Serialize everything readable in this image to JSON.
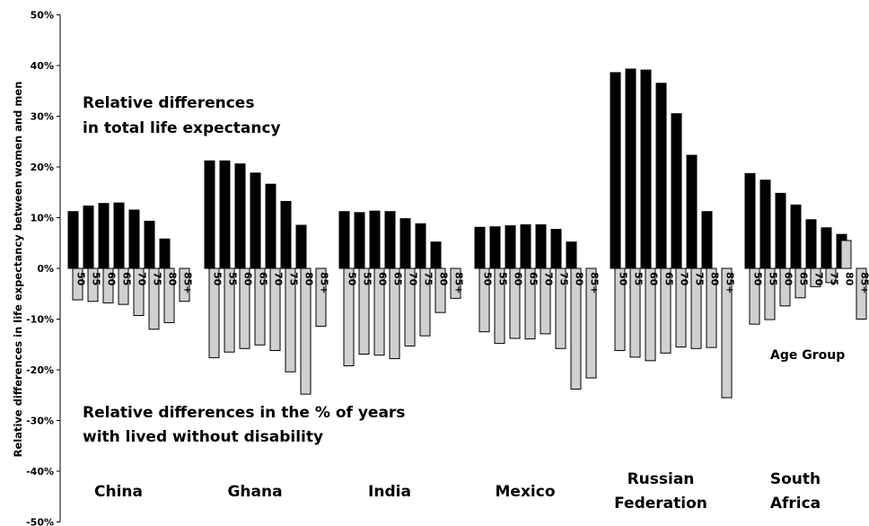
{
  "chart_data": {
    "type": "bar",
    "ylabel": "Relative differences in life expectancy between women and men",
    "ylim": [
      -0.5,
      0.5
    ],
    "yticks": [
      0.5,
      0.4,
      0.3,
      0.2,
      0.1,
      0,
      -0.1,
      -0.2,
      -0.3,
      -0.4,
      -0.5
    ],
    "ytick_labels": [
      "50%",
      "40%",
      "30%",
      "20%",
      "10%",
      "0%",
      "-10%",
      "-20%",
      "-30%",
      "-40%",
      "-50%"
    ],
    "age_group_label": "Age Group",
    "annotations": {
      "top": [
        "Relative differences",
        "in total life expectancy"
      ],
      "bottom": [
        "Relative differences in the % of years",
        "with lived without disability"
      ]
    },
    "colors": {
      "total": "#000000",
      "disability_free": "#d0d0d0",
      "outline": "#000000"
    },
    "series": [
      {
        "key": "total",
        "description": "total life expectancy"
      },
      {
        "key": "disability_free",
        "description": "% of years lived without disability"
      }
    ],
    "groups": [
      {
        "name_lines": [
          "China"
        ],
        "categories": [
          "50",
          "55",
          "60",
          "65",
          "70",
          "75",
          "80",
          "85+"
        ],
        "total": [
          0.112,
          0.123,
          0.128,
          0.129,
          0.115,
          0.093,
          0.058,
          null
        ],
        "disability_free": [
          -0.062,
          -0.065,
          -0.068,
          -0.071,
          -0.093,
          -0.12,
          -0.107,
          -0.065
        ]
      },
      {
        "name_lines": [
          "Ghana"
        ],
        "categories": [
          "50",
          "55",
          "60",
          "65",
          "70",
          "75",
          "80",
          "85+"
        ],
        "total": [
          0.212,
          0.212,
          0.206,
          0.188,
          0.166,
          0.132,
          0.085,
          null
        ],
        "disability_free": [
          -0.176,
          -0.165,
          -0.158,
          -0.151,
          -0.162,
          -0.204,
          -0.248,
          -0.114
        ]
      },
      {
        "name_lines": [
          "India"
        ],
        "categories": [
          "50",
          "55",
          "60",
          "65",
          "70",
          "75",
          "80",
          "85+"
        ],
        "total": [
          0.112,
          0.11,
          0.113,
          0.112,
          0.098,
          0.088,
          0.052,
          null
        ],
        "disability_free": [
          -0.192,
          -0.169,
          -0.171,
          -0.178,
          -0.153,
          -0.133,
          -0.087,
          -0.059
        ]
      },
      {
        "name_lines": [
          "Mexico"
        ],
        "categories": [
          "50",
          "55",
          "60",
          "65",
          "70",
          "75",
          "80",
          "85+"
        ],
        "total": [
          0.081,
          0.082,
          0.084,
          0.086,
          0.086,
          0.077,
          0.052,
          null
        ],
        "disability_free": [
          -0.125,
          -0.148,
          -0.138,
          -0.139,
          -0.129,
          -0.158,
          -0.238,
          -0.216
        ]
      },
      {
        "name_lines": [
          "Russian",
          "Federation"
        ],
        "categories": [
          "50",
          "55",
          "60",
          "65",
          "70",
          "75",
          "80",
          "85+"
        ],
        "total": [
          0.386,
          0.393,
          0.391,
          0.365,
          0.305,
          0.223,
          0.112,
          null
        ],
        "disability_free": [
          -0.162,
          -0.175,
          -0.182,
          -0.167,
          -0.155,
          -0.158,
          -0.156,
          -0.255
        ]
      },
      {
        "name_lines": [
          "South",
          "Africa"
        ],
        "categories": [
          "50",
          "55",
          "60",
          "65",
          "70",
          "75",
          "80",
          "85+"
        ],
        "total": [
          0.187,
          0.174,
          0.148,
          0.125,
          0.096,
          0.08,
          0.067,
          null
        ],
        "disability_free": [
          -0.11,
          -0.101,
          -0.074,
          -0.058,
          -0.036,
          -0.028,
          0.055,
          -0.1
        ]
      }
    ]
  }
}
